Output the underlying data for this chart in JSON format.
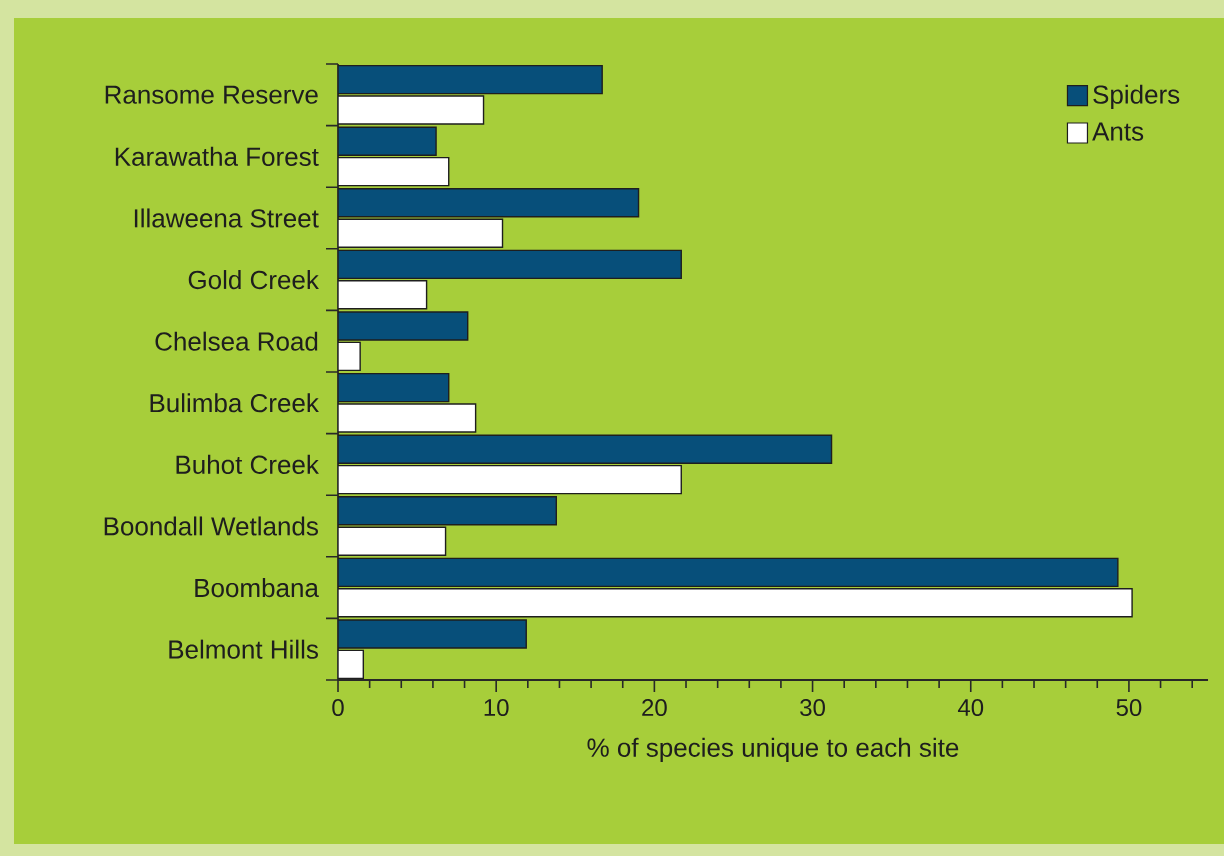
{
  "chart_data": {
    "type": "bar",
    "orientation": "horizontal",
    "xlabel": "% of species unique to each site",
    "categories": [
      "Ransome Reserve",
      "Karawatha Forest",
      "Illaweena Street",
      "Gold Creek",
      "Chelsea Road",
      "Bulimba Creek",
      "Buhot Creek",
      "Boondall Wetlands",
      "Boombana",
      "Belmont Hills"
    ],
    "series": [
      {
        "name": "Spiders",
        "color": "#074f7a",
        "values": [
          16.7,
          6.2,
          19.0,
          21.7,
          8.2,
          7.0,
          31.2,
          13.8,
          49.3,
          11.9
        ]
      },
      {
        "name": "Ants",
        "color": "#ffffff",
        "values": [
          9.2,
          7.0,
          10.4,
          5.6,
          1.4,
          8.7,
          21.7,
          6.8,
          50.2,
          1.6
        ]
      }
    ],
    "xlim": [
      0,
      55
    ],
    "xticks": [
      0,
      {
        "value": 2,
        "label": null
      },
      {
        "value": 4,
        "label": null
      },
      {
        "value": 6,
        "label": null
      },
      {
        "value": 8,
        "label": null
      },
      10,
      {
        "value": 12,
        "label": null
      },
      {
        "value": 14,
        "label": null
      },
      {
        "value": 16,
        "label": null
      },
      {
        "value": 18,
        "label": null
      },
      20,
      {
        "value": 22,
        "label": null
      },
      {
        "value": 24,
        "label": null
      },
      {
        "value": 26,
        "label": null
      },
      {
        "value": 28,
        "label": null
      },
      30,
      {
        "value": 32,
        "label": null
      },
      {
        "value": 34,
        "label": null
      },
      {
        "value": 36,
        "label": null
      },
      {
        "value": 38,
        "label": null
      },
      40,
      {
        "value": 42,
        "label": null
      },
      {
        "value": 44,
        "label": null
      },
      {
        "value": 46,
        "label": null
      },
      {
        "value": 48,
        "label": null
      },
      50,
      {
        "value": 52,
        "label": null
      },
      {
        "value": 54,
        "label": null
      }
    ],
    "grid": false,
    "legend": "top right"
  }
}
